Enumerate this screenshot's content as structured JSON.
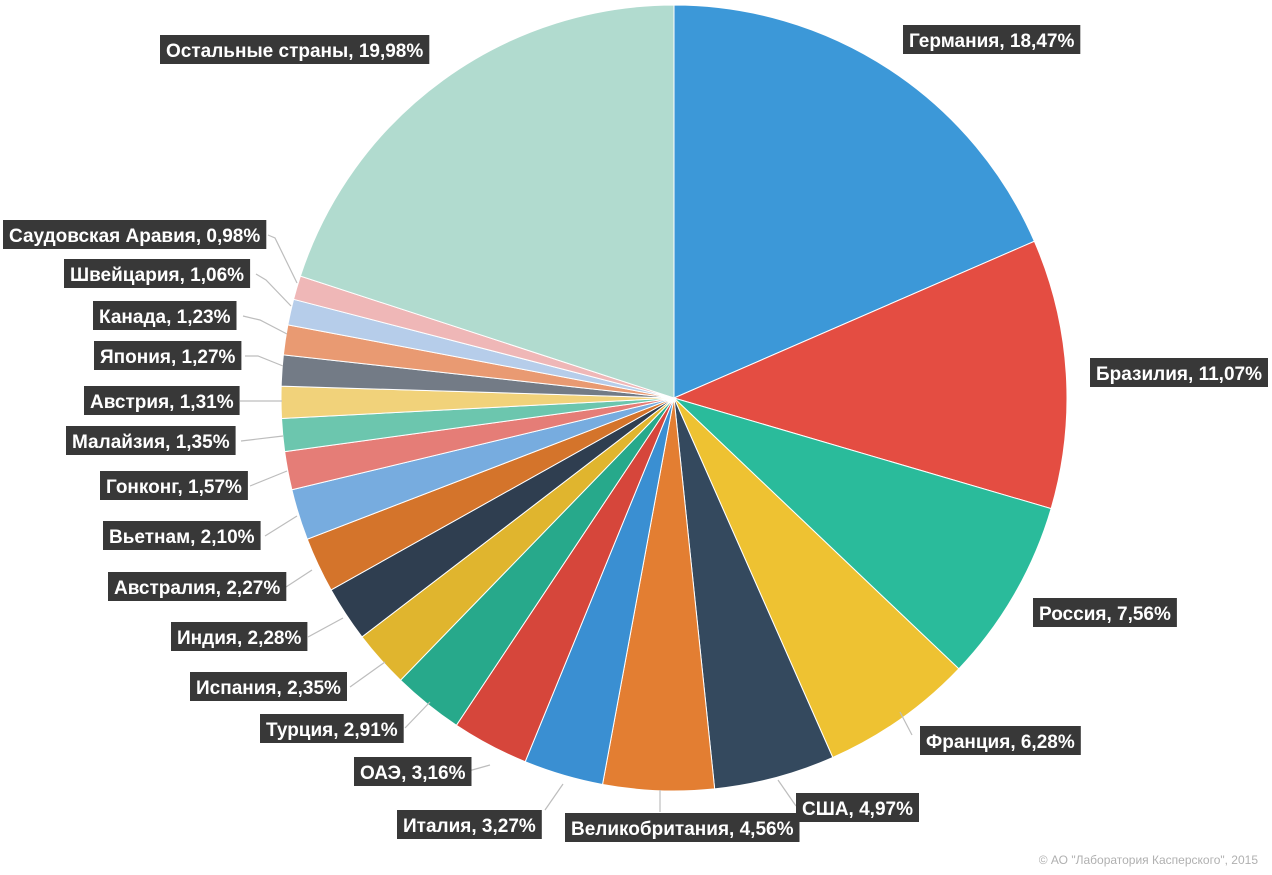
{
  "chart_data": {
    "type": "pie",
    "start_angle_deg": 0,
    "direction": "clockwise",
    "slices": [
      {
        "label": "Германия, 18,47%",
        "value": 18.47,
        "color": "#3c98d8"
      },
      {
        "label": "Бразилия, 11,07%",
        "value": 11.07,
        "color": "#e44d42"
      },
      {
        "label": "Россия, 7,56%",
        "value": 7.56,
        "color": "#2abb9b"
      },
      {
        "label": "Франция, 6,28%",
        "value": 6.28,
        "color": "#eec232"
      },
      {
        "label": "США, 4,97%",
        "value": 4.97,
        "color": "#34495e"
      },
      {
        "label": "Великобритания, 4,56%",
        "value": 4.56,
        "color": "#e37e32"
      },
      {
        "label": "Италия, 3,27%",
        "value": 3.27,
        "color": "#3a8fd2"
      },
      {
        "label": "ОАЭ, 3,16%",
        "value": 3.16,
        "color": "#d6463b"
      },
      {
        "label": "Турция, 2,91%",
        "value": 2.91,
        "color": "#27a98b"
      },
      {
        "label": "Испания, 2,35%",
        "value": 2.35,
        "color": "#e0b52e"
      },
      {
        "label": "Индия, 2,28%",
        "value": 2.28,
        "color": "#2f3e50"
      },
      {
        "label": "Австралия, 2,27%",
        "value": 2.27,
        "color": "#d4742b"
      },
      {
        "label": "Вьетнам, 2,10%",
        "value": 2.1,
        "color": "#77acdf"
      },
      {
        "label": "Гонконг, 1,57%",
        "value": 1.57,
        "color": "#e57d77"
      },
      {
        "label": "Малайзия, 1,35%",
        "value": 1.35,
        "color": "#6cc6ae"
      },
      {
        "label": "Австрия, 1,31%",
        "value": 1.31,
        "color": "#f1d27a"
      },
      {
        "label": "Япония, 1,27%",
        "value": 1.27,
        "color": "#737b86"
      },
      {
        "label": "Канада, 1,23%",
        "value": 1.23,
        "color": "#e99a72"
      },
      {
        "label": "Швейцария, 1,06%",
        "value": 1.06,
        "color": "#b6cdea"
      },
      {
        "label": "Саудовская Аравия, 0,98%",
        "value": 0.98,
        "color": "#efb7b7"
      },
      {
        "label": "Остальные страны, 19,98%",
        "value": 19.98,
        "color": "#b1dbcf"
      }
    ]
  },
  "copyright": "© АО \"Лаборатория Касперского\", 2015"
}
